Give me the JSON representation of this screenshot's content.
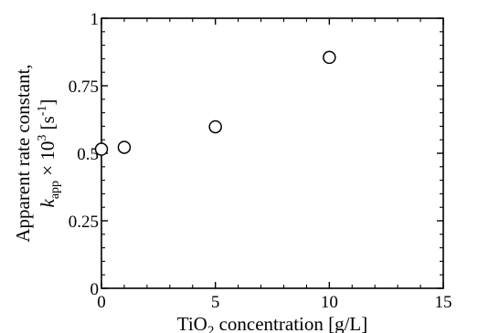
{
  "chart_data": {
    "type": "scatter",
    "title": "",
    "xlabel_parts": [
      "TiO",
      "2",
      " concentration [g/L]"
    ],
    "ylabel_line1": "Apparent rate constant,",
    "ylabel_parts": [
      "k",
      "app",
      " × 10",
      "3",
      " [s",
      "-1",
      "]"
    ],
    "xlim": [
      0,
      15
    ],
    "ylim": [
      0,
      1
    ],
    "x_ticks": [
      0,
      5,
      10,
      15
    ],
    "x_tick_labels": [
      "0",
      "5",
      "10",
      "15"
    ],
    "y_ticks": [
      0,
      0.25,
      0.5,
      0.75,
      1
    ],
    "y_tick_labels": [
      "0",
      "0.25",
      "0.5",
      "0.75",
      "1"
    ],
    "grid": false,
    "marker": "open-circle",
    "series": [
      {
        "x": [
          0,
          1,
          5,
          10
        ],
        "y": [
          0.515,
          0.522,
          0.598,
          0.855
        ]
      }
    ]
  }
}
